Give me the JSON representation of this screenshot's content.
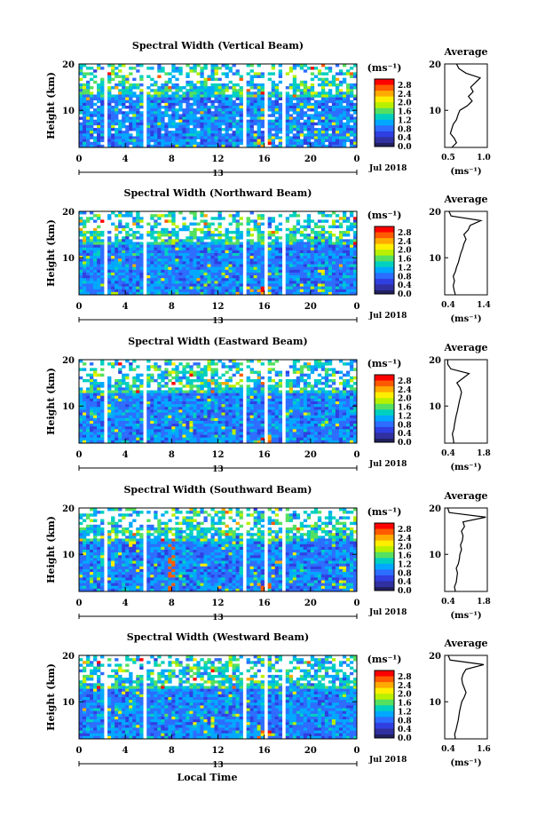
{
  "figure": {
    "xaxis_title": "Local Time",
    "ylabel": "Height (km)",
    "x_ticks": [
      "0",
      "4",
      "8",
      "12",
      "16",
      "20",
      "0"
    ],
    "y_ticks": [
      "20",
      "10"
    ],
    "date_label": "Jul 2018",
    "day_label": "13",
    "colorbar_unit": "(ms⁻¹)",
    "colorbar_ticks": [
      "2.8",
      "2.4",
      "2.0",
      "1.6",
      "1.2",
      "0.8",
      "0.4",
      "0.0"
    ],
    "colorbar_colors": [
      "#ff0000",
      "#ff5a00",
      "#ffaa00",
      "#ffee00",
      "#b8f000",
      "#55e060",
      "#00d0c0",
      "#00a8ff",
      "#2d6dff",
      "#2f3fe0",
      "#3030a0"
    ],
    "avg_title": "Average",
    "avg_xunit": "(ms⁻¹)"
  },
  "chart_data": [
    {
      "type": "heatmap",
      "title": "Spectral Width (Vertical Beam)",
      "x_range_hours": [
        0,
        24
      ],
      "y_range_km": [
        2,
        20
      ],
      "colorbar_range": [
        0.0,
        3.0
      ],
      "average_profile": {
        "xlim": [
          0.3,
          1.2
        ],
        "xticks": [
          "0.5",
          "1.0"
        ],
        "heights_km": [
          2,
          3,
          4,
          5,
          6,
          7,
          8,
          9,
          10,
          11,
          12,
          13,
          14,
          15,
          16,
          17,
          18,
          19,
          20
        ],
        "values": [
          0.45,
          0.55,
          0.5,
          0.42,
          0.45,
          0.48,
          0.55,
          0.58,
          0.62,
          0.78,
          0.88,
          0.8,
          0.9,
          0.85,
          0.95,
          1.05,
          0.75,
          0.6,
          0.55
        ]
      }
    },
    {
      "type": "heatmap",
      "title": "Spectral Width (Northward Beam)",
      "x_range_hours": [
        0,
        24
      ],
      "y_range_km": [
        2,
        20
      ],
      "colorbar_range": [
        0.0,
        3.0
      ],
      "average_profile": {
        "xlim": [
          0.4,
          1.4
        ],
        "xticks": [
          "0.4",
          "1.4"
        ],
        "heights_km": [
          2,
          3,
          4,
          5,
          6,
          7,
          8,
          9,
          10,
          11,
          12,
          13,
          14,
          15,
          16,
          17,
          18,
          19,
          20
        ],
        "values": [
          0.65,
          0.62,
          0.6,
          0.63,
          0.6,
          0.65,
          0.68,
          0.72,
          0.75,
          0.78,
          0.82,
          0.85,
          0.9,
          0.85,
          0.95,
          1.0,
          1.25,
          0.55,
          0.5
        ]
      }
    },
    {
      "type": "heatmap",
      "title": "Spectral Width (Eastward Beam)",
      "x_range_hours": [
        0,
        24
      ],
      "y_range_km": [
        2,
        20
      ],
      "colorbar_range": [
        0.0,
        3.0
      ],
      "average_profile": {
        "xlim": [
          0.4,
          1.8
        ],
        "xticks": [
          "0.4",
          "1.8"
        ],
        "heights_km": [
          2,
          3,
          4,
          5,
          6,
          7,
          8,
          9,
          10,
          11,
          12,
          13,
          14,
          15,
          16,
          17,
          18,
          19,
          20
        ],
        "values": [
          0.7,
          0.68,
          0.65,
          0.7,
          0.72,
          0.75,
          0.78,
          0.82,
          0.85,
          0.88,
          0.92,
          0.95,
          0.9,
          0.8,
          1.0,
          1.2,
          0.6,
          0.5,
          0.5
        ]
      }
    },
    {
      "type": "heatmap",
      "title": "Spectral Width (Southward Beam)",
      "x_range_hours": [
        0,
        24
      ],
      "y_range_km": [
        2,
        20
      ],
      "colorbar_range": [
        0.0,
        3.0
      ],
      "average_profile": {
        "xlim": [
          0.4,
          1.8
        ],
        "xticks": [
          "0.4",
          "1.8"
        ],
        "heights_km": [
          2,
          3,
          4,
          5,
          6,
          7,
          8,
          9,
          10,
          11,
          12,
          13,
          14,
          15,
          16,
          17,
          18,
          19,
          20
        ],
        "values": [
          0.75,
          0.72,
          0.78,
          0.8,
          0.82,
          0.78,
          0.85,
          0.88,
          0.9,
          0.95,
          0.92,
          0.98,
          1.0,
          0.95,
          1.05,
          1.0,
          1.75,
          0.55,
          0.5
        ]
      }
    },
    {
      "type": "heatmap",
      "title": "Spectral Width (Westward Beam)",
      "x_range_hours": [
        0,
        24
      ],
      "y_range_km": [
        2,
        20
      ],
      "colorbar_range": [
        0.0,
        3.0
      ],
      "average_profile": {
        "xlim": [
          0.4,
          1.6
        ],
        "xticks": [
          "0.4",
          "1.6"
        ],
        "heights_km": [
          2,
          3,
          4,
          5,
          6,
          7,
          8,
          9,
          10,
          11,
          12,
          13,
          14,
          15,
          16,
          17,
          18,
          19,
          20
        ],
        "values": [
          0.7,
          0.68,
          0.72,
          0.75,
          0.78,
          0.8,
          0.82,
          0.85,
          0.88,
          0.95,
          1.0,
          0.95,
          0.9,
          0.88,
          0.92,
          1.0,
          1.5,
          0.55,
          0.5
        ]
      }
    }
  ]
}
